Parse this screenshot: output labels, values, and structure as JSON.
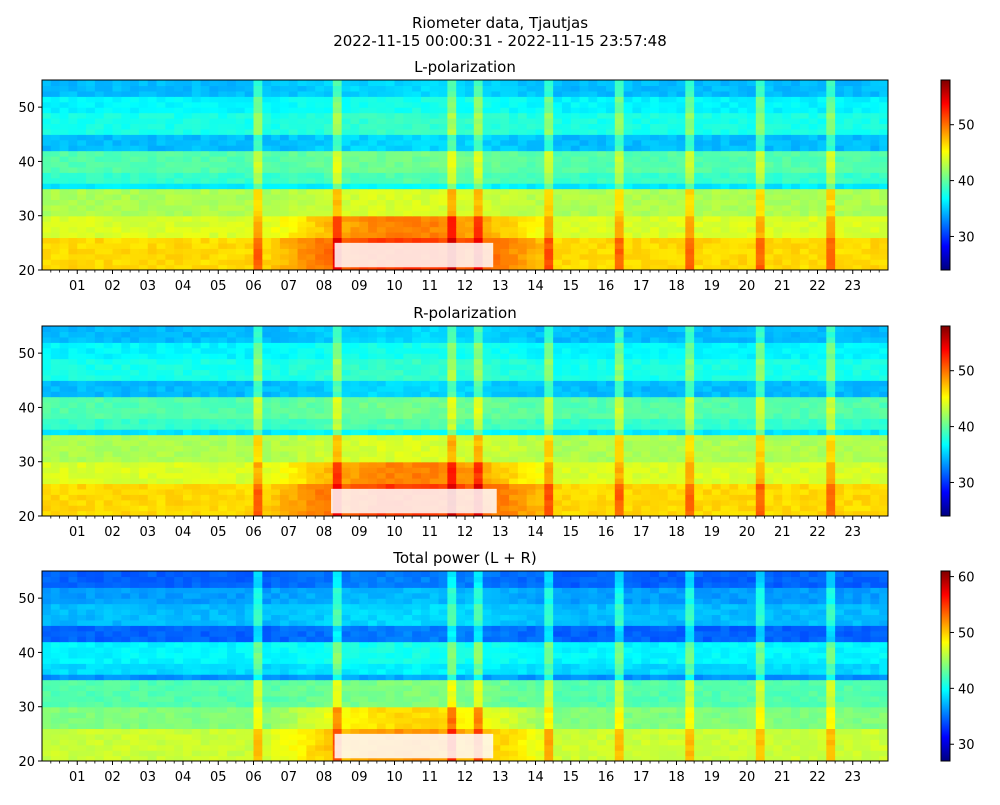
{
  "figure": {
    "title_line1": "Riometer data, Tjautjas",
    "title_line2": "2022-11-15 00:00:31 - 2022-11-15 23:57:48"
  },
  "colormap": [
    "#00007f",
    "#0000ff",
    "#007fff",
    "#00ffff",
    "#7fff7f",
    "#ffff00",
    "#ff7f00",
    "#ff0000",
    "#7f0000"
  ],
  "chart_data": [
    {
      "type": "heatmap",
      "title": "L-polarization",
      "xlabel": "",
      "ylabel": "",
      "x_range_hours": [
        0,
        24
      ],
      "ylim": [
        20,
        55
      ],
      "x_ticklabels": [
        "01",
        "02",
        "03",
        "04",
        "05",
        "06",
        "07",
        "08",
        "09",
        "10",
        "11",
        "12",
        "13",
        "14",
        "15",
        "16",
        "17",
        "18",
        "19",
        "20",
        "21",
        "22",
        "23"
      ],
      "y_ticks": [
        20,
        30,
        40,
        50
      ],
      "colorbar": {
        "range": [
          24,
          58
        ],
        "ticks": [
          30,
          40,
          50
        ]
      },
      "saturated_region": {
        "hours": [
          8.3,
          12.8
        ],
        "y": [
          20.5,
          25
        ]
      }
    },
    {
      "type": "heatmap",
      "title": "R-polarization",
      "xlabel": "",
      "ylabel": "",
      "x_range_hours": [
        0,
        24
      ],
      "ylim": [
        20,
        55
      ],
      "x_ticklabels": [
        "01",
        "02",
        "03",
        "04",
        "05",
        "06",
        "07",
        "08",
        "09",
        "10",
        "11",
        "12",
        "13",
        "14",
        "15",
        "16",
        "17",
        "18",
        "19",
        "20",
        "21",
        "22",
        "23"
      ],
      "y_ticks": [
        20,
        30,
        40,
        50
      ],
      "colorbar": {
        "range": [
          24,
          58
        ],
        "ticks": [
          30,
          40,
          50
        ]
      },
      "saturated_region": {
        "hours": [
          8.2,
          12.9
        ],
        "y": [
          20.5,
          25
        ]
      }
    },
    {
      "type": "heatmap",
      "title": "Total power (L + R)",
      "xlabel": "",
      "ylabel": "",
      "x_range_hours": [
        0,
        24
      ],
      "ylim": [
        20,
        55
      ],
      "x_ticklabels": [
        "01",
        "02",
        "03",
        "04",
        "05",
        "06",
        "07",
        "08",
        "09",
        "10",
        "11",
        "12",
        "13",
        "14",
        "15",
        "16",
        "17",
        "18",
        "19",
        "20",
        "21",
        "22",
        "23"
      ],
      "y_ticks": [
        20,
        30,
        40,
        50
      ],
      "colorbar": {
        "range": [
          27,
          61
        ],
        "ticks": [
          30,
          40,
          50,
          60
        ]
      },
      "saturated_region": {
        "hours": [
          8.3,
          12.8
        ],
        "y": [
          20.5,
          25
        ]
      }
    }
  ]
}
